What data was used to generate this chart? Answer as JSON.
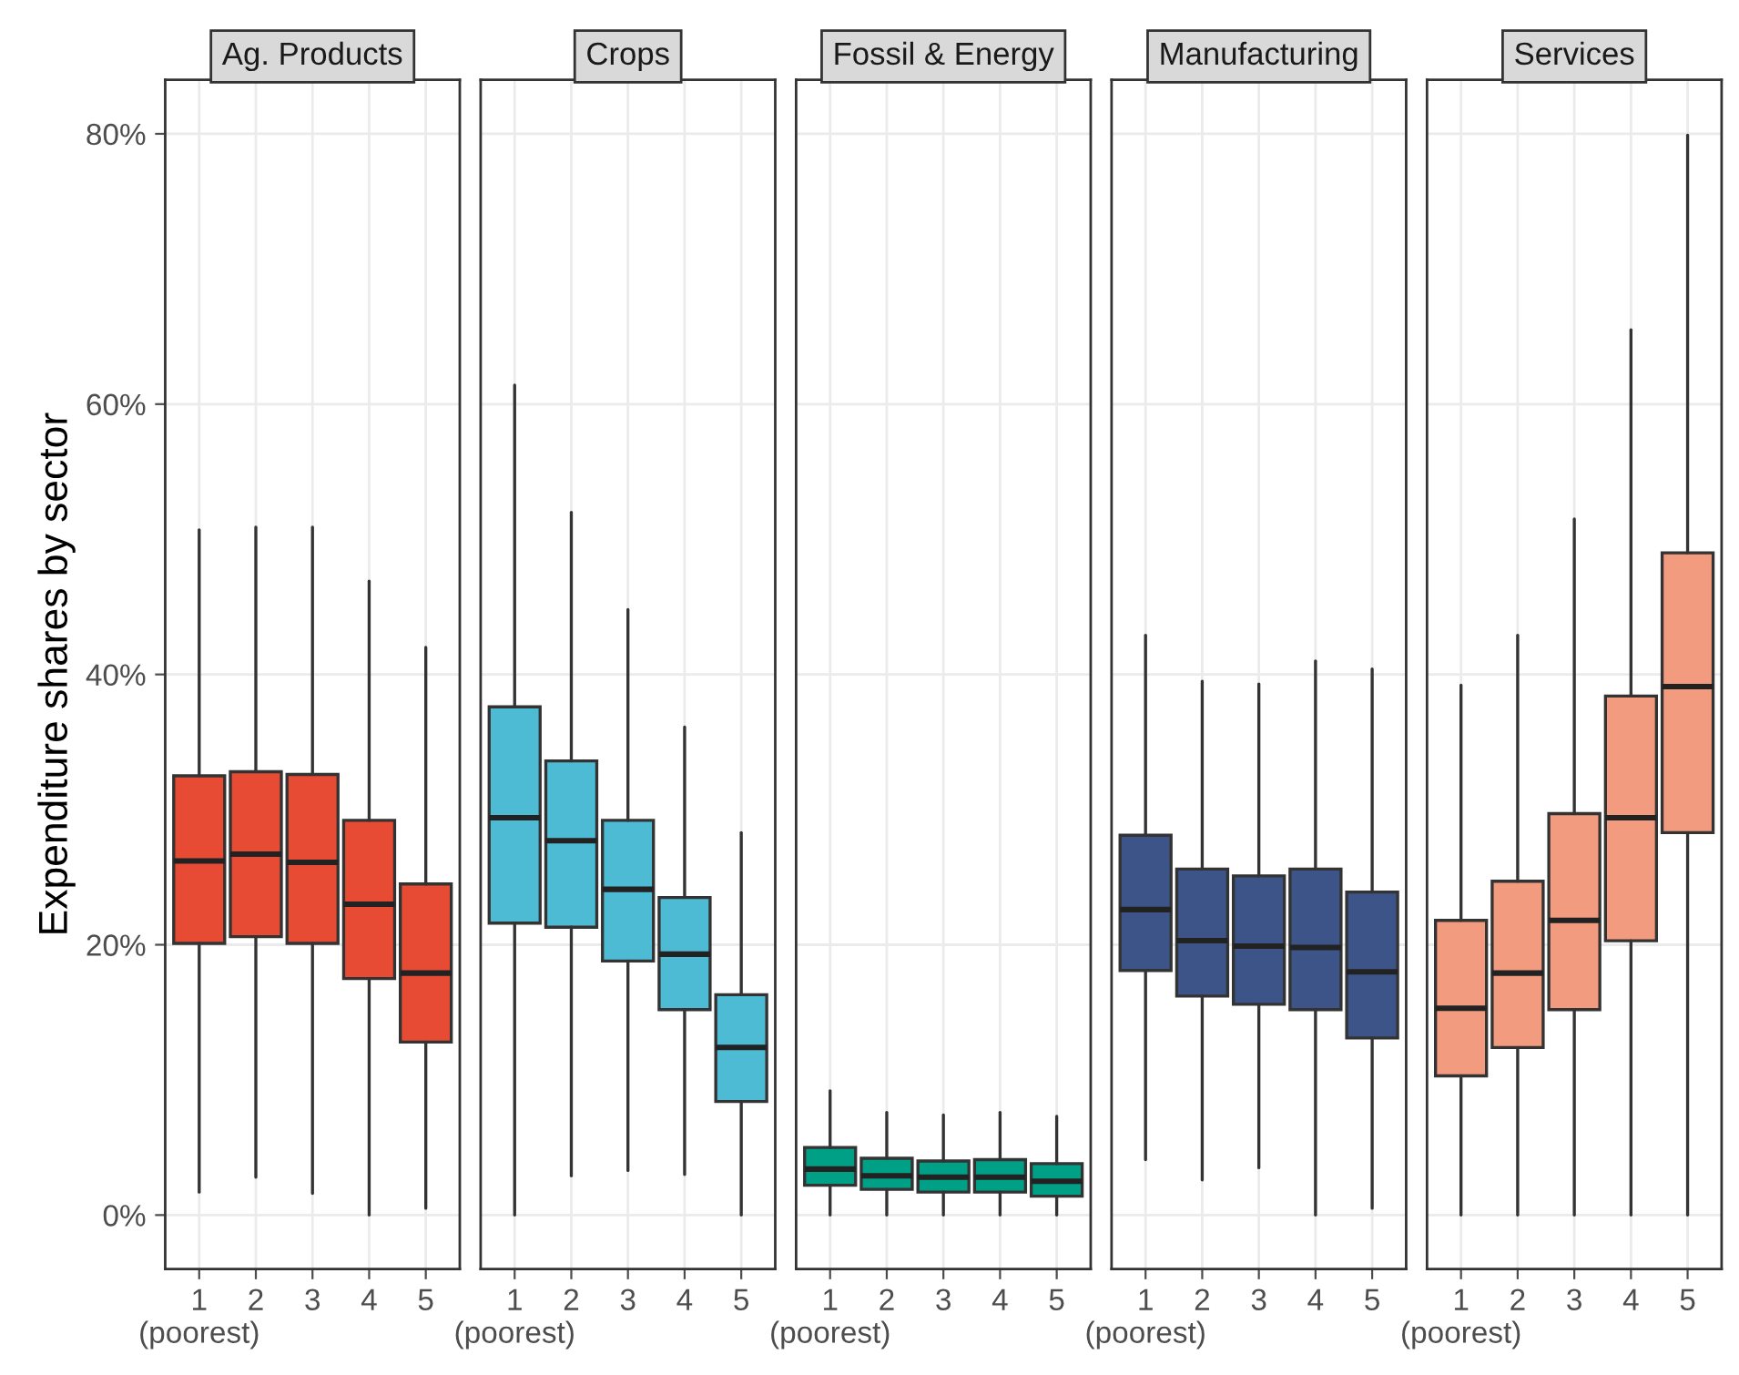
{
  "chart_data": [
    {
      "type": "box",
      "title": "Ag. Products",
      "ylabel": "Expenditure shares by sector",
      "categories": [
        "1\n(poorest)",
        "2",
        "3",
        "4",
        "5"
      ],
      "color": "#e84b33",
      "ylim": [
        -4,
        84
      ],
      "yticks": [
        {
          "value": 0,
          "label": "0%"
        },
        {
          "value": 20,
          "label": "20%"
        },
        {
          "value": 40,
          "label": "40%"
        },
        {
          "value": 60,
          "label": "60%"
        },
        {
          "value": 80,
          "label": "80%"
        }
      ],
      "grid": true,
      "boxes": [
        {
          "low": 1.7,
          "q1": 20.1,
          "median": 26.2,
          "q3": 32.5,
          "high": 50.7
        },
        {
          "low": 2.8,
          "q1": 20.6,
          "median": 26.7,
          "q3": 32.8,
          "high": 50.9
        },
        {
          "low": 1.6,
          "q1": 20.1,
          "median": 26.1,
          "q3": 32.6,
          "high": 50.9
        },
        {
          "low": 0,
          "q1": 17.5,
          "median": 23.0,
          "q3": 29.2,
          "high": 46.9
        },
        {
          "low": 0.5,
          "q1": 12.8,
          "median": 17.9,
          "q3": 24.5,
          "high": 42.0
        }
      ]
    },
    {
      "type": "box",
      "title": "Crops",
      "categories": [
        "1\n(poorest)",
        "2",
        "3",
        "4",
        "5"
      ],
      "color": "#4ebbd5",
      "ylim": [
        -4,
        84
      ],
      "grid": true,
      "tick_labels": "x",
      "boxes": [
        {
          "low": 0,
          "q1": 21.6,
          "median": 29.4,
          "q3": 37.6,
          "high": 61.4
        },
        {
          "low": 2.9,
          "q1": 21.3,
          "median": 27.7,
          "q3": 33.6,
          "high": 52.0
        },
        {
          "low": 3.3,
          "q1": 18.8,
          "median": 24.1,
          "q3": 29.2,
          "high": 44.8
        },
        {
          "low": 3.0,
          "q1": 15.2,
          "median": 19.3,
          "q3": 23.5,
          "high": 36.1
        },
        {
          "low": 0,
          "q1": 8.4,
          "median": 12.4,
          "q3": 16.3,
          "high": 28.3
        }
      ]
    },
    {
      "type": "box",
      "title": "Fossil & Energy",
      "categories": [
        "1\n(poorest)",
        "2",
        "3",
        "4",
        "5"
      ],
      "color": "#00a087",
      "ylim": [
        -4,
        84
      ],
      "grid": true,
      "tick_labels": "x",
      "boxes": [
        {
          "low": 0,
          "q1": 2.2,
          "median": 3.4,
          "q3": 5.0,
          "high": 9.2
        },
        {
          "low": 0,
          "q1": 1.9,
          "median": 2.9,
          "q3": 4.2,
          "high": 7.6
        },
        {
          "low": 0,
          "q1": 1.7,
          "median": 2.8,
          "q3": 4.0,
          "high": 7.4
        },
        {
          "low": 0,
          "q1": 1.7,
          "median": 2.8,
          "q3": 4.1,
          "high": 7.6
        },
        {
          "low": 0,
          "q1": 1.4,
          "median": 2.5,
          "q3": 3.8,
          "high": 7.3
        }
      ]
    },
    {
      "type": "box",
      "title": "Manufacturing",
      "categories": [
        "1\n(poorest)",
        "2",
        "3",
        "4",
        "5"
      ],
      "color": "#3c5488",
      "ylim": [
        -4,
        84
      ],
      "grid": true,
      "tick_labels": "x",
      "boxes": [
        {
          "low": 4.1,
          "q1": 18.1,
          "median": 22.6,
          "q3": 28.1,
          "high": 42.9
        },
        {
          "low": 2.6,
          "q1": 16.2,
          "median": 20.3,
          "q3": 25.6,
          "high": 39.5
        },
        {
          "low": 3.5,
          "q1": 15.6,
          "median": 19.9,
          "q3": 25.1,
          "high": 39.3
        },
        {
          "low": 0,
          "q1": 15.2,
          "median": 19.8,
          "q3": 25.6,
          "high": 41.0
        },
        {
          "low": 0.5,
          "q1": 13.1,
          "median": 18.0,
          "q3": 23.9,
          "high": 40.4
        }
      ]
    },
    {
      "type": "box",
      "title": "Services",
      "categories": [
        "1\n(poorest)",
        "2",
        "3",
        "4",
        "5"
      ],
      "color": "#f39b7f",
      "ylim": [
        -4,
        84
      ],
      "grid": true,
      "tick_labels": "x",
      "boxes": [
        {
          "low": 0,
          "q1": 10.3,
          "median": 15.3,
          "q3": 21.8,
          "high": 39.2
        },
        {
          "low": 0,
          "q1": 12.4,
          "median": 17.9,
          "q3": 24.7,
          "high": 42.9
        },
        {
          "low": 0,
          "q1": 15.2,
          "median": 21.8,
          "q3": 29.7,
          "high": 51.5
        },
        {
          "low": 0,
          "q1": 20.3,
          "median": 29.4,
          "q3": 38.4,
          "high": 65.5
        },
        {
          "low": 0,
          "q1": 28.3,
          "median": 39.1,
          "q3": 49.0,
          "high": 79.9
        }
      ]
    }
  ]
}
